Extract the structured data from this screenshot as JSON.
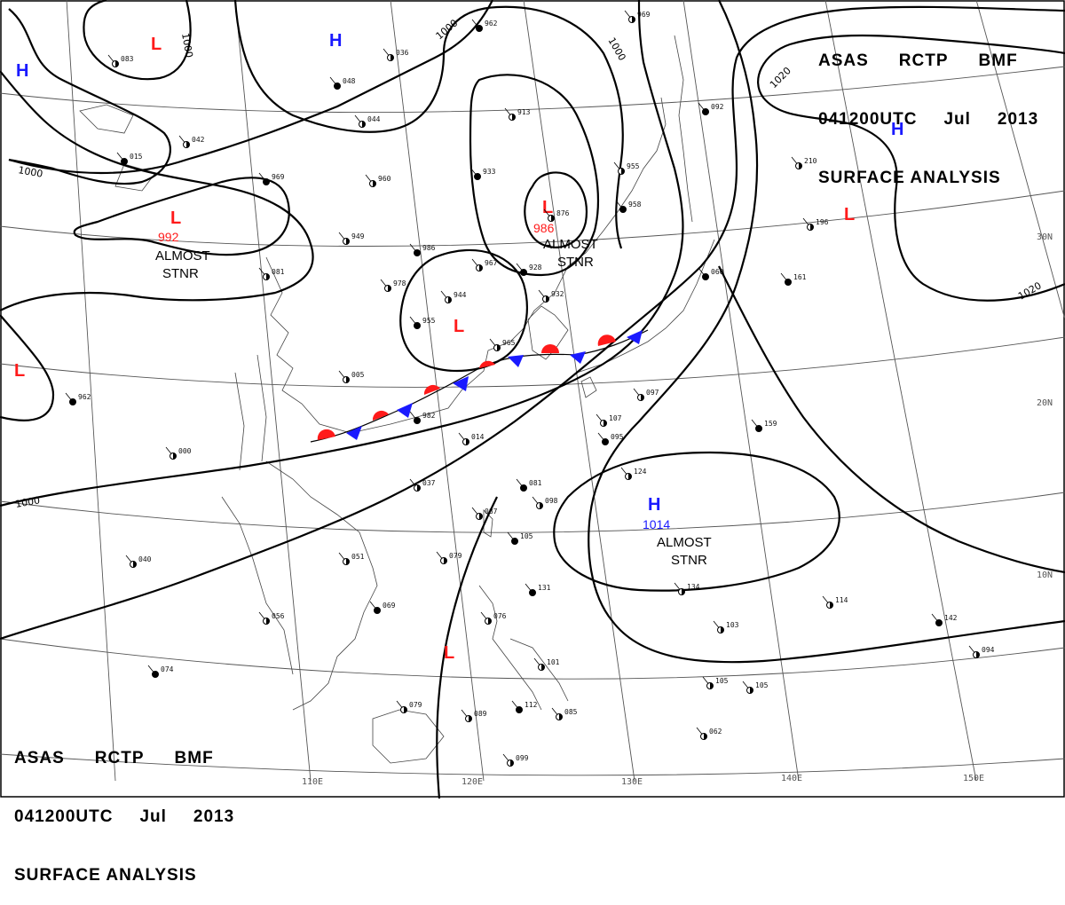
{
  "header_top_right": {
    "line1": [
      "ASAS",
      "RCTP",
      "BMF"
    ],
    "line2": [
      "041200UTC",
      "Jul",
      "2013"
    ],
    "line3": "SURFACE ANALYSIS"
  },
  "header_bottom_left": {
    "line1": [
      "ASAS",
      "RCTP",
      "BMF"
    ],
    "line2": [
      "041200UTC",
      "Jul",
      "2013"
    ],
    "line3": "SURFACE ANALYSIS"
  },
  "pressure_centers": [
    {
      "id": "H1",
      "letter": "H",
      "color": "#1a1aff"
    },
    {
      "id": "L1",
      "letter": "L",
      "color": "#ff1a1a"
    },
    {
      "id": "H2",
      "letter": "H",
      "color": "#1a1aff"
    },
    {
      "id": "H3",
      "letter": "H",
      "color": "#1a1aff"
    },
    {
      "id": "L2",
      "letter": "L",
      "color": "#ff1a1a"
    },
    {
      "id": "L3",
      "letter": "L",
      "color": "#ff1a1a",
      "value": "986",
      "text": "ALMOST STNR"
    },
    {
      "id": "L4",
      "letter": "L",
      "color": "#ff1a1a",
      "value": "992",
      "text": "ALMOST STNR"
    },
    {
      "id": "L5",
      "letter": "L",
      "color": "#ff1a1a"
    },
    {
      "id": "L6",
      "letter": "L",
      "color": "#ff1a1a"
    },
    {
      "id": "H4",
      "letter": "H",
      "color": "#1a1aff",
      "value": "1014",
      "text": "ALMOST STNR"
    },
    {
      "id": "L7",
      "letter": "L",
      "color": "#ff1a1a"
    }
  ],
  "isobar_labels": [
    "1000",
    "1000",
    "1000",
    "1000",
    "1020",
    "1020",
    "1000"
  ],
  "longitude_labels": [
    "110E",
    "120E",
    "130E",
    "140E",
    "150E"
  ],
  "latitude_labels": [
    "30N",
    "20N",
    "10N"
  ],
  "station_pressures": [
    "962",
    "969",
    "036",
    "048",
    "044",
    "083",
    "015",
    "042",
    "960",
    "969",
    "949",
    "081",
    "986",
    "978",
    "967",
    "928",
    "932",
    "944",
    "955",
    "965",
    "005",
    "982",
    "014",
    "037",
    "081",
    "087",
    "098",
    "105",
    "079",
    "051",
    "069",
    "056",
    "040",
    "074",
    "079",
    "089",
    "112",
    "085",
    "101",
    "131",
    "076",
    "107",
    "095",
    "124",
    "097",
    "092",
    "105",
    "105",
    "159",
    "134",
    "114",
    "142",
    "094",
    "103",
    "962",
    "000",
    "196",
    "161",
    "210",
    "062",
    "060",
    "099",
    "913",
    "933",
    "876",
    "955",
    "958"
  ],
  "colors": {
    "high": "#1a1aff",
    "low": "#ff1a1a",
    "front_warm": "#ff1a1a",
    "front_cold": "#1a1aff",
    "isobar": "#000000",
    "grid": "#555555",
    "coast": "#444444"
  }
}
